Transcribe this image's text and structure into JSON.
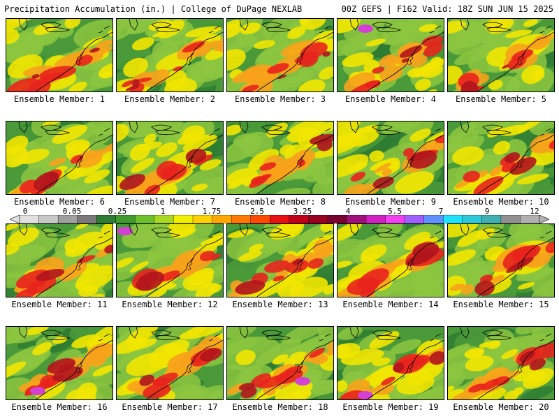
{
  "header": {
    "left_text": "Precipitation Accumulation (in.) | College of DuPage NEXLAB",
    "right_text": "00Z GEFS | F162 Valid: 18Z SUN JUN 15 2025"
  },
  "panels": [
    {
      "label": "Ensemble Member: 1"
    },
    {
      "label": "Ensemble Member: 2"
    },
    {
      "label": "Ensemble Member: 3"
    },
    {
      "label": "Ensemble Member: 4"
    },
    {
      "label": "Ensemble Member: 5"
    },
    {
      "label": "Ensemble Member: 6"
    },
    {
      "label": "Ensemble Member: 7"
    },
    {
      "label": "Ensemble Member: 8"
    },
    {
      "label": "Ensemble Member: 9"
    },
    {
      "label": "Ensemble Member: 10"
    },
    {
      "label": "Ensemble Member: 11"
    },
    {
      "label": "Ensemble Member: 12"
    },
    {
      "label": "Ensemble Member: 13"
    },
    {
      "label": "Ensemble Member: 14"
    },
    {
      "label": "Ensemble Member: 15"
    },
    {
      "label": "Ensemble Member: 16"
    },
    {
      "label": "Ensemble Member: 17"
    },
    {
      "label": "Ensemble Member: 18"
    },
    {
      "label": "Ensemble Member: 19"
    },
    {
      "label": "Ensemble Member: 20"
    }
  ],
  "colorbar": {
    "tick_labels": [
      "0",
      "0.05",
      "0.25",
      "1",
      "1.75",
      "2.5",
      "3.25",
      "4",
      "5.5",
      "7",
      "9",
      "12"
    ],
    "colors": [
      "#e0e0e0",
      "#c8c8c8",
      "#a0a0a0",
      "#7a7a7a",
      "#2e7d32",
      "#3f9b2f",
      "#6cc02a",
      "#a8d820",
      "#f0f000",
      "#ffd000",
      "#ffa800",
      "#ff7800",
      "#ff4a00",
      "#e81010",
      "#c00018",
      "#9a0020",
      "#780030",
      "#a0107a",
      "#d020c0",
      "#f040f0",
      "#a060ff",
      "#6090ff",
      "#20e0ff",
      "#30c8d8",
      "#40b0b0",
      "#909090",
      "#b0b0b0"
    ]
  },
  "palette": {
    "dark_green": "#2f7d33",
    "green": "#4a9a3a",
    "light_green": "#8cc63f",
    "yellow": "#f2e600",
    "orange": "#f7a21b",
    "red": "#e8231d",
    "dark_red": "#b0151d",
    "magenta": "#d43fd4"
  }
}
